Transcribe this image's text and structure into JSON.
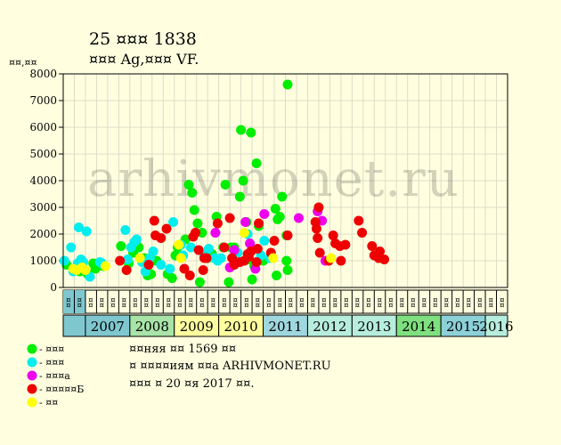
{
  "chart_data": {
    "type": "scatter",
    "title": "25 ¤¤¤ 1838",
    "subtitle": "¤¤¤ Ag,¤¤¤ VF.",
    "ylabel": "¤¤,¤¤",
    "ylim": [
      0,
      8000
    ],
    "yticks": [
      0,
      1000,
      2000,
      3000,
      4000,
      5000,
      6000,
      7000,
      8000
    ],
    "watermark": "arhivmonet.ru",
    "grid": true,
    "categories": [
      "¤¤",
      "¤¤",
      "¤¤",
      "¤¤",
      "¤¤",
      "¤¤",
      "¤¤",
      "¤¤",
      "¤¤",
      "¤¤",
      "¤¤",
      "¤¤",
      "¤¤",
      "¤¤",
      "¤¤",
      "¤¤",
      "¤¤",
      "¤¤",
      "¤¤",
      "¤¤",
      "¤¤",
      "¤¤",
      "¤¤",
      "¤¤",
      "¤¤",
      "¤¤",
      "¤¤",
      "¤¤",
      "¤¤",
      "¤¤",
      "¤¤",
      "¤¤",
      "¤¤",
      "¤¤",
      "¤¤",
      "¤¤",
      "¤¤",
      "¤¤",
      "¤¤",
      "¤¤"
    ],
    "years": [
      {
        "label": "2007",
        "color": "#7fc7cf"
      },
      {
        "label": "2008",
        "color": "#a8e3a8"
      },
      {
        "label": "2009",
        "color": "#ffffa0"
      },
      {
        "label": "2010",
        "color": "#ffffa0"
      },
      {
        "label": "2011",
        "color": "#9fd7df"
      },
      {
        "label": "2012",
        "color": "#b7eddc"
      },
      {
        "label": "2013",
        "color": "#b7eddc"
      },
      {
        "label": "2014",
        "color": "#7ee07e"
      },
      {
        "label": "2015",
        "color": "#8cd0d8"
      },
      {
        "label": "2016",
        "color": "#b7eddc"
      }
    ],
    "series": [
      {
        "name": "- ¤¤¤",
        "color": "#00ee00",
        "points": [
          [
            0.3,
            850
          ],
          [
            1.5,
            600
          ],
          [
            2.2,
            500
          ],
          [
            2.7,
            900
          ],
          [
            2.9,
            700
          ],
          [
            3.6,
            800
          ],
          [
            5.2,
            1550
          ],
          [
            5.9,
            900
          ],
          [
            6.3,
            1300
          ],
          [
            6.8,
            1500
          ],
          [
            7.3,
            1100
          ],
          [
            7.6,
            450
          ],
          [
            7.9,
            500
          ],
          [
            8.4,
            1000
          ],
          [
            9.4,
            500
          ],
          [
            9.8,
            350
          ],
          [
            10.1,
            1200
          ],
          [
            10.3,
            1500
          ],
          [
            11.0,
            1800
          ],
          [
            11.3,
            3850
          ],
          [
            11.6,
            3550
          ],
          [
            11.8,
            2900
          ],
          [
            12.1,
            2400
          ],
          [
            12.3,
            200
          ],
          [
            12.5,
            2050
          ],
          [
            13.0,
            1100
          ],
          [
            13.4,
            1250
          ],
          [
            13.8,
            2650
          ],
          [
            14.4,
            1500
          ],
          [
            14.6,
            3850
          ],
          [
            14.9,
            200
          ],
          [
            15.1,
            1500
          ],
          [
            15.4,
            1500
          ],
          [
            15.9,
            3400
          ],
          [
            16.0,
            5900
          ],
          [
            16.2,
            4000
          ],
          [
            16.5,
            2450
          ],
          [
            16.7,
            1050
          ],
          [
            16.9,
            5800
          ],
          [
            17.0,
            300
          ],
          [
            17.2,
            800
          ],
          [
            17.4,
            4650
          ],
          [
            17.6,
            2300
          ],
          [
            18.0,
            1000
          ],
          [
            19.1,
            2950
          ],
          [
            19.2,
            450
          ],
          [
            19.3,
            2550
          ],
          [
            19.5,
            2650
          ],
          [
            19.7,
            3400
          ],
          [
            20.1,
            1950
          ],
          [
            20.1,
            1000
          ],
          [
            20.2,
            650
          ],
          [
            20.2,
            7600
          ]
        ]
      },
      {
        "name": "- ¤¤¤",
        "color": "#00eeee",
        "points": [
          [
            0.1,
            1000
          ],
          [
            0.7,
            1500
          ],
          [
            0.9,
            600
          ],
          [
            1.3,
            900
          ],
          [
            1.4,
            2250
          ],
          [
            1.6,
            1050
          ],
          [
            1.8,
            950
          ],
          [
            2.1,
            2100
          ],
          [
            2.4,
            400
          ],
          [
            3.3,
            950
          ],
          [
            3.5,
            900
          ],
          [
            5.6,
            2150
          ],
          [
            5.8,
            1050
          ],
          [
            6.1,
            1500
          ],
          [
            6.4,
            1700
          ],
          [
            6.6,
            1800
          ],
          [
            7.1,
            950
          ],
          [
            7.4,
            600
          ],
          [
            7.8,
            1100
          ],
          [
            8.1,
            1350
          ],
          [
            8.8,
            850
          ],
          [
            9.6,
            700
          ],
          [
            9.9,
            2450
          ],
          [
            10.6,
            1600
          ],
          [
            10.8,
            1200
          ],
          [
            11.5,
            1500
          ],
          [
            12.7,
            1200
          ],
          [
            13.1,
            1450
          ],
          [
            13.6,
            1100
          ],
          [
            13.9,
            1000
          ],
          [
            14.2,
            1100
          ],
          [
            15.7,
            1300
          ],
          [
            16.6,
            2000
          ],
          [
            17.8,
            1200
          ],
          [
            18.1,
            1750
          ],
          [
            18.6,
            1100
          ]
        ]
      },
      {
        "name": "- ¤¤¤а",
        "color": "#ee00ee",
        "points": [
          [
            13.7,
            2050
          ],
          [
            15.0,
            750
          ],
          [
            15.4,
            1400
          ],
          [
            16.4,
            2450
          ],
          [
            16.8,
            1650
          ],
          [
            17.3,
            700
          ],
          [
            18.1,
            2750
          ],
          [
            21.2,
            2600
          ],
          [
            22.9,
            2850
          ],
          [
            23.3,
            2500
          ],
          [
            23.6,
            1000
          ]
        ]
      },
      {
        "name": "- ¤¤¤¤¤Б",
        "color": "#ee0000",
        "points": [
          [
            5.1,
            1000
          ],
          [
            5.7,
            650
          ],
          [
            7.7,
            850
          ],
          [
            8.2,
            2500
          ],
          [
            8.3,
            1950
          ],
          [
            8.8,
            1850
          ],
          [
            9.3,
            2200
          ],
          [
            10.9,
            700
          ],
          [
            11.4,
            450
          ],
          [
            11.7,
            1900
          ],
          [
            11.9,
            2050
          ],
          [
            12.2,
            1400
          ],
          [
            12.6,
            650
          ],
          [
            12.7,
            1100
          ],
          [
            12.9,
            1100
          ],
          [
            13.9,
            2400
          ],
          [
            14.5,
            1500
          ],
          [
            15.0,
            2600
          ],
          [
            15.2,
            1100
          ],
          [
            15.4,
            850
          ],
          [
            15.9,
            950
          ],
          [
            16.3,
            1000
          ],
          [
            16.6,
            1250
          ],
          [
            16.7,
            1150
          ],
          [
            16.9,
            1350
          ],
          [
            17.4,
            950
          ],
          [
            17.5,
            1450
          ],
          [
            17.6,
            2400
          ],
          [
            18.7,
            1300
          ],
          [
            19.0,
            1750
          ],
          [
            20.2,
            1950
          ],
          [
            22.7,
            2450
          ],
          [
            22.8,
            2200
          ],
          [
            22.9,
            1850
          ],
          [
            23.0,
            3000
          ],
          [
            23.1,
            1300
          ],
          [
            23.9,
            1000
          ],
          [
            24.3,
            1950
          ],
          [
            24.5,
            1650
          ],
          [
            24.9,
            1550
          ],
          [
            25.0,
            1000
          ],
          [
            25.4,
            1600
          ],
          [
            26.6,
            2500
          ],
          [
            26.9,
            2050
          ],
          [
            27.8,
            1550
          ],
          [
            28.0,
            1200
          ],
          [
            28.4,
            1100
          ],
          [
            28.9,
            1050
          ],
          [
            28.5,
            1350
          ]
        ]
      },
      {
        "name": "- ¤¤",
        "color": "#ffff00",
        "points": [
          [
            0.9,
            700
          ],
          [
            1.2,
            650
          ],
          [
            1.7,
            750
          ],
          [
            2.0,
            650
          ],
          [
            3.8,
            800
          ],
          [
            6.9,
            1100
          ],
          [
            10.4,
            1600
          ],
          [
            10.6,
            1100
          ],
          [
            16.3,
            2050
          ],
          [
            18.9,
            1100
          ],
          [
            24.1,
            1100
          ]
        ]
      }
    ]
  },
  "notes": {
    "line1": "¤¤няя ¤¤ 1569 ¤¤",
    "line2": "¤ ¤¤¤¤иям ¤¤а ARHIVMONET.RU",
    "line3": "¤¤¤ ¤ 20 ¤я 2017 ¤¤."
  }
}
